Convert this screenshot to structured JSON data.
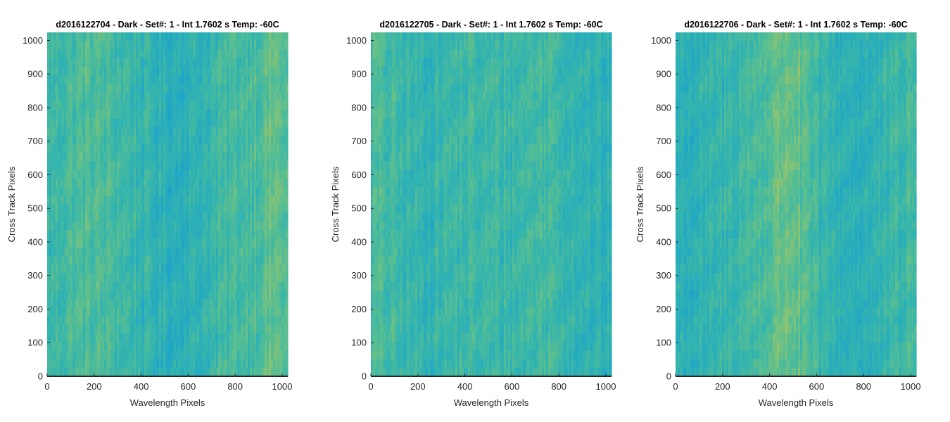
{
  "chart_data": [
    {
      "type": "heatmap",
      "title": "d2016122704 - Dark - Set#: 1 - Int 1.7602 s Temp: -60C",
      "xlabel": "Wavelength Pixels",
      "ylabel": "Cross Track Pixels",
      "xlim": [
        0,
        1024
      ],
      "ylim": [
        0,
        1024
      ],
      "xticks": [
        "0",
        "200",
        "400",
        "600",
        "800",
        "1000"
      ],
      "yticks": [
        "0",
        "100",
        "200",
        "300",
        "400",
        "500",
        "600",
        "700",
        "800",
        "900",
        "1000"
      ],
      "colormap": [
        "#0f9bd0",
        "#22a8c4",
        "#35b5ad",
        "#5dbf8e",
        "#9ac36a",
        "#c9c24c"
      ]
    },
    {
      "type": "heatmap",
      "title": "d2016122705 - Dark - Set#: 1 - Int 1.7602 s Temp: -60C",
      "xlabel": "Wavelength Pixels",
      "ylabel": "Cross Track Pixels",
      "xlim": [
        0,
        1024
      ],
      "ylim": [
        0,
        1024
      ],
      "xticks": [
        "0",
        "200",
        "400",
        "600",
        "800",
        "1000"
      ],
      "yticks": [
        "0",
        "100",
        "200",
        "300",
        "400",
        "500",
        "600",
        "700",
        "800",
        "900",
        "1000"
      ],
      "colormap": [
        "#0f9bd0",
        "#22a8c4",
        "#35b5ad",
        "#5dbf8e",
        "#9ac36a",
        "#c9c24c"
      ]
    },
    {
      "type": "heatmap",
      "title": "d2016122706 - Dark - Set#: 1 - Int 1.7602 s Temp: -60C",
      "xlabel": "Wavelength Pixels",
      "ylabel": "Cross Track Pixels",
      "xlim": [
        0,
        1024
      ],
      "ylim": [
        0,
        1024
      ],
      "xticks": [
        "0",
        "200",
        "400",
        "600",
        "800",
        "1000"
      ],
      "yticks": [
        "0",
        "100",
        "200",
        "300",
        "400",
        "500",
        "600",
        "700",
        "800",
        "900",
        "1000"
      ],
      "colormap": [
        "#0f9bd0",
        "#22a8c4",
        "#35b5ad",
        "#5dbf8e",
        "#9ac36a",
        "#c9c24c"
      ]
    }
  ]
}
